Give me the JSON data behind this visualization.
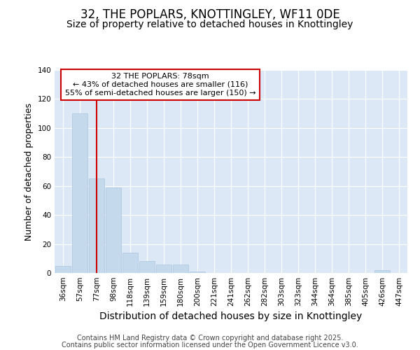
{
  "title1": "32, THE POPLARS, KNOTTINGLEY, WF11 0DE",
  "title2": "Size of property relative to detached houses in Knottingley",
  "xlabel": "Distribution of detached houses by size in Knottingley",
  "ylabel": "Number of detached properties",
  "categories": [
    "36sqm",
    "57sqm",
    "77sqm",
    "98sqm",
    "118sqm",
    "139sqm",
    "159sqm",
    "180sqm",
    "200sqm",
    "221sqm",
    "241sqm",
    "262sqm",
    "282sqm",
    "303sqm",
    "323sqm",
    "344sqm",
    "364sqm",
    "385sqm",
    "405sqm",
    "426sqm",
    "447sqm"
  ],
  "values": [
    5,
    110,
    65,
    59,
    14,
    8,
    6,
    6,
    1,
    0,
    0,
    0,
    0,
    0,
    0,
    0,
    0,
    0,
    0,
    2,
    0
  ],
  "bar_color": "#c5d9ed",
  "bar_edge_color": "#a8c4e0",
  "vline_pos": 2.0,
  "vline_color": "#cc0000",
  "vline_label": "32 THE POPLARS: 78sqm",
  "annotation_line1": "← 43% of detached houses are smaller (116)",
  "annotation_line2": "55% of semi-detached houses are larger (150) →",
  "ylim": [
    0,
    140
  ],
  "yticks": [
    0,
    20,
    40,
    60,
    80,
    100,
    120,
    140
  ],
  "fig_bg_color": "#ffffff",
  "plot_bg_color": "#dce8f5",
  "grid_color": "#ffffff",
  "box_edge_color": "#cc0000",
  "title_fontsize": 12,
  "subtitle_fontsize": 10,
  "tick_fontsize": 7.5,
  "ylabel_fontsize": 9,
  "xlabel_fontsize": 10,
  "annot_fontsize": 8,
  "footer1": "Contains HM Land Registry data © Crown copyright and database right 2025.",
  "footer2": "Contains public sector information licensed under the Open Government Licence v3.0.",
  "footer_fontsize": 7
}
